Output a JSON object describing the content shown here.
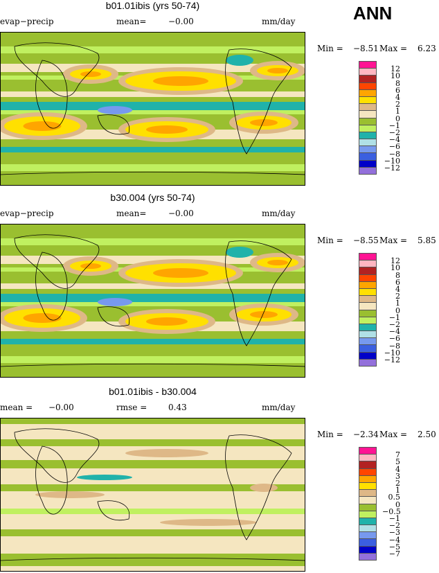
{
  "season": "ANN",
  "colors": [
    "#ff1493",
    "#ffb6c1",
    "#b22222",
    "#ff4500",
    "#ffa500",
    "#ffe000",
    "#deb887",
    "#f5e6c0",
    "#9abf30",
    "#c0f060",
    "#20b2aa",
    "#b0e0e6",
    "#7799ee",
    "#3b5fe0",
    "#0000c8",
    "#9370db"
  ],
  "panels": [
    {
      "title": "b01.01ibis (yrs 50-74)",
      "left": "evap−precip",
      "center_label": "mean=",
      "center_value": "−0.00",
      "units": "mm/day",
      "min_label": "Min =",
      "min": "−8.51",
      "max_label": "Max =",
      "max": "6.23",
      "levels": [
        "12",
        "10",
        "8",
        "6",
        "4",
        "2",
        "1",
        "0",
        "−1",
        "−2",
        "−4",
        "−6",
        "−8",
        "−10",
        "−12"
      ]
    },
    {
      "title": "b30.004 (yrs 50-74)",
      "left": "evap−precip",
      "center_label": "mean=",
      "center_value": "−0.00",
      "units": "mm/day",
      "min_label": "Min =",
      "min": "−8.55",
      "max_label": "Max =",
      "max": "5.85",
      "levels": [
        "12",
        "10",
        "8",
        "6",
        "4",
        "2",
        "1",
        "0",
        "−1",
        "−2",
        "−4",
        "−6",
        "−8",
        "−10",
        "−12"
      ]
    },
    {
      "title": "b01.01ibis - b30.004",
      "left_label": "mean =",
      "left": "−0.00",
      "center_label": "rmse =",
      "center_value": "0.43",
      "units": "mm/day",
      "min_label": "Min =",
      "min": "−2.34",
      "max_label": "Max =",
      "max": "2.50",
      "levels": [
        "7",
        "5",
        "4",
        "3",
        "2",
        "1",
        "0.5",
        "0",
        "−0.5",
        "−1",
        "−2",
        "−3",
        "−4",
        "−5",
        "−7"
      ]
    }
  ]
}
